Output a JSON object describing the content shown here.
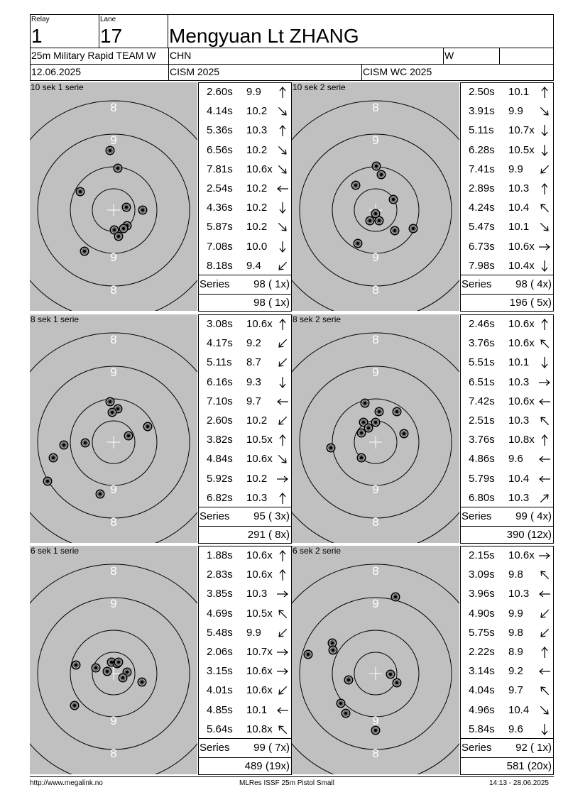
{
  "header": {
    "relay_label": "Relay",
    "relay_value": "1",
    "lane_label": "Lane",
    "lane_value": "17",
    "name": "Mengyuan Lt ZHANG",
    "event": "25m Military Rapid TEAM W",
    "country": "CHN",
    "gender": "W",
    "date": "12.06.2025",
    "competition": "CISM 2025",
    "championship": "CISM WC 2025"
  },
  "series": [
    {
      "label": "10 sek 1 serie",
      "shots": [
        {
          "time": "2.60s",
          "score": "9.9",
          "dir": "up"
        },
        {
          "time": "4.14s",
          "score": "10.2",
          "dir": "down-right"
        },
        {
          "time": "5.36s",
          "score": "10.3",
          "dir": "up"
        },
        {
          "time": "6.56s",
          "score": "10.2",
          "dir": "down-right"
        },
        {
          "time": "7.81s",
          "score": "10.6x",
          "dir": "down-right"
        },
        {
          "time": "2.54s",
          "score": "10.2",
          "dir": "left"
        },
        {
          "time": "4.36s",
          "score": "10.2",
          "dir": "down"
        },
        {
          "time": "5.87s",
          "score": "10.2",
          "dir": "down-right"
        },
        {
          "time": "7.08s",
          "score": "10.0",
          "dir": "down"
        },
        {
          "time": "8.18s",
          "score": "9.4",
          "dir": "down-left"
        }
      ],
      "series_label": "Series",
      "series_total": "98 ( 1x)",
      "running_total": "98 ( 1x)",
      "impacts": [
        [
          -5,
          -84
        ],
        [
          6,
          -59
        ],
        [
          -47,
          -26
        ],
        [
          18,
          -4
        ],
        [
          41,
          0
        ],
        [
          19,
          22
        ],
        [
          14,
          26
        ],
        [
          1,
          28
        ],
        [
          7,
          37
        ],
        [
          -41,
          58
        ]
      ]
    },
    {
      "label": "10 sek 2 serie",
      "shots": [
        {
          "time": "2.50s",
          "score": "10.1",
          "dir": "up"
        },
        {
          "time": "3.91s",
          "score": "9.9",
          "dir": "down-right"
        },
        {
          "time": "5.11s",
          "score": "10.7x",
          "dir": "down"
        },
        {
          "time": "6.28s",
          "score": "10.5x",
          "dir": "down"
        },
        {
          "time": "7.41s",
          "score": "9.9",
          "dir": "down-left"
        },
        {
          "time": "2.89s",
          "score": "10.3",
          "dir": "up"
        },
        {
          "time": "4.24s",
          "score": "10.4",
          "dir": "up-left"
        },
        {
          "time": "5.47s",
          "score": "10.1",
          "dir": "down-right"
        },
        {
          "time": "6.73s",
          "score": "10.6x",
          "dir": "right"
        },
        {
          "time": "7.98s",
          "score": "10.4x",
          "dir": "down"
        }
      ],
      "series_label": "Series",
      "series_total": "98 ( 4x)",
      "running_total": "196 ( 5x)",
      "impacts": [
        [
          1,
          -62
        ],
        [
          8,
          -50
        ],
        [
          -28,
          -35
        ],
        [
          25,
          -15
        ],
        [
          0,
          5
        ],
        [
          5,
          15
        ],
        [
          -8,
          15
        ],
        [
          27,
          29
        ],
        [
          53,
          26
        ],
        [
          -25,
          47
        ]
      ]
    },
    {
      "label": "8 sek 1 serie",
      "shots": [
        {
          "time": "3.08s",
          "score": "10.6x",
          "dir": "up"
        },
        {
          "time": "4.17s",
          "score": "9.2",
          "dir": "down-left"
        },
        {
          "time": "5.11s",
          "score": "8.7",
          "dir": "down-left"
        },
        {
          "time": "6.16s",
          "score": "9.3",
          "dir": "down"
        },
        {
          "time": "7.10s",
          "score": "9.7",
          "dir": "left"
        },
        {
          "time": "2.60s",
          "score": "10.2",
          "dir": "down-left"
        },
        {
          "time": "3.82s",
          "score": "10.5x",
          "dir": "up"
        },
        {
          "time": "4.84s",
          "score": "10.6x",
          "dir": "down-right"
        },
        {
          "time": "5.92s",
          "score": "10.2",
          "dir": "right"
        },
        {
          "time": "6.82s",
          "score": "10.3",
          "dir": "up"
        }
      ],
      "series_label": "Series",
      "series_total": "95 ( 3x)",
      "running_total": "291 ( 8x)",
      "impacts": [
        [
          -5,
          -57
        ],
        [
          6,
          -47
        ],
        [
          -2,
          -42
        ],
        [
          48,
          -22
        ],
        [
          21,
          -9
        ],
        [
          -40,
          1
        ],
        [
          -70,
          4
        ],
        [
          -85,
          22
        ],
        [
          -93,
          55
        ],
        [
          -19,
          73
        ]
      ]
    },
    {
      "label": "8 sek 2 serie",
      "shots": [
        {
          "time": "2.46s",
          "score": "10.6x",
          "dir": "up"
        },
        {
          "time": "3.76s",
          "score": "10.6x",
          "dir": "up-left"
        },
        {
          "time": "5.51s",
          "score": "10.1",
          "dir": "down"
        },
        {
          "time": "6.51s",
          "score": "10.3",
          "dir": "right"
        },
        {
          "time": "7.42s",
          "score": "10.6x",
          "dir": "left"
        },
        {
          "time": "2.51s",
          "score": "10.3",
          "dir": "up-left"
        },
        {
          "time": "3.76s",
          "score": "10.8x",
          "dir": "up"
        },
        {
          "time": "4.86s",
          "score": "9.6",
          "dir": "left"
        },
        {
          "time": "5.79s",
          "score": "10.4",
          "dir": "left"
        },
        {
          "time": "6.80s",
          "score": "10.3",
          "dir": "up-right"
        }
      ],
      "series_label": "Series",
      "series_total": "99 ( 4x)",
      "running_total": "390 (12x)",
      "impacts": [
        [
          -15,
          -55
        ],
        [
          5,
          -43
        ],
        [
          30,
          -43
        ],
        [
          0,
          -28
        ],
        [
          -17,
          -28
        ],
        [
          -10,
          -20
        ],
        [
          -20,
          -13
        ],
        [
          40,
          -12
        ],
        [
          -63,
          8
        ],
        [
          -20,
          22
        ]
      ]
    },
    {
      "label": "6 sek 1 serie",
      "shots": [
        {
          "time": "1.88s",
          "score": "10.6x",
          "dir": "up"
        },
        {
          "time": "2.83s",
          "score": "10.6x",
          "dir": "up"
        },
        {
          "time": "3.85s",
          "score": "10.3",
          "dir": "right"
        },
        {
          "time": "4.69s",
          "score": "10.5x",
          "dir": "up-left"
        },
        {
          "time": "5.48s",
          "score": "9.9",
          "dir": "down-left"
        },
        {
          "time": "2.06s",
          "score": "10.7x",
          "dir": "right"
        },
        {
          "time": "3.15s",
          "score": "10.6x",
          "dir": "right"
        },
        {
          "time": "4.01s",
          "score": "10.6x",
          "dir": "down-left"
        },
        {
          "time": "4.85s",
          "score": "10.1",
          "dir": "left"
        },
        {
          "time": "5.64s",
          "score": "10.8x",
          "dir": "up-left"
        }
      ],
      "series_label": "Series",
      "series_total": "99 ( 7x)",
      "running_total": "489 (19x)",
      "impacts": [
        [
          -3,
          -16
        ],
        [
          5,
          -14
        ],
        [
          -53,
          -12
        ],
        [
          -25,
          -8
        ],
        [
          -9,
          -3
        ],
        [
          19,
          -2
        ],
        [
          13,
          6
        ],
        [
          40,
          12
        ],
        [
          -55,
          45
        ],
        [
          7,
          -16
        ]
      ]
    },
    {
      "label": "6 sek 2 serie",
      "shots": [
        {
          "time": "2.15s",
          "score": "10.6x",
          "dir": "right"
        },
        {
          "time": "3.09s",
          "score": "9.8",
          "dir": "up-left"
        },
        {
          "time": "3.96s",
          "score": "10.3",
          "dir": "left"
        },
        {
          "time": "4.90s",
          "score": "9.9",
          "dir": "down-left"
        },
        {
          "time": "5.75s",
          "score": "9.8",
          "dir": "down-left"
        },
        {
          "time": "2.22s",
          "score": "8.9",
          "dir": "up"
        },
        {
          "time": "3.14s",
          "score": "9.2",
          "dir": "left"
        },
        {
          "time": "4.04s",
          "score": "9.7",
          "dir": "up-left"
        },
        {
          "time": "4.96s",
          "score": "10.4",
          "dir": "down-right"
        },
        {
          "time": "5.84s",
          "score": "9.6",
          "dir": "down"
        }
      ],
      "series_label": "Series",
      "series_total": "92 ( 1x)",
      "running_total": "581 (20x)",
      "impacts": [
        [
          28,
          -108
        ],
        [
          -61,
          -43
        ],
        [
          -60,
          -33
        ],
        [
          -95,
          -27
        ],
        [
          21,
          1
        ],
        [
          -38,
          9
        ],
        [
          30,
          13
        ],
        [
          -49,
          42
        ],
        [
          -42,
          56
        ],
        [
          0,
          80
        ]
      ]
    }
  ],
  "target_rings": {
    "outer": "8",
    "middle": "9"
  },
  "footer": {
    "url": "http://www.megalink.no",
    "program": "MLRes ISSF 25m Pistol Small",
    "timestamp": "14:13 - 28.06.2025"
  },
  "colors": {
    "target_bg": "#c0c0c0",
    "lines": "#000000",
    "labels": "#ffffff"
  }
}
